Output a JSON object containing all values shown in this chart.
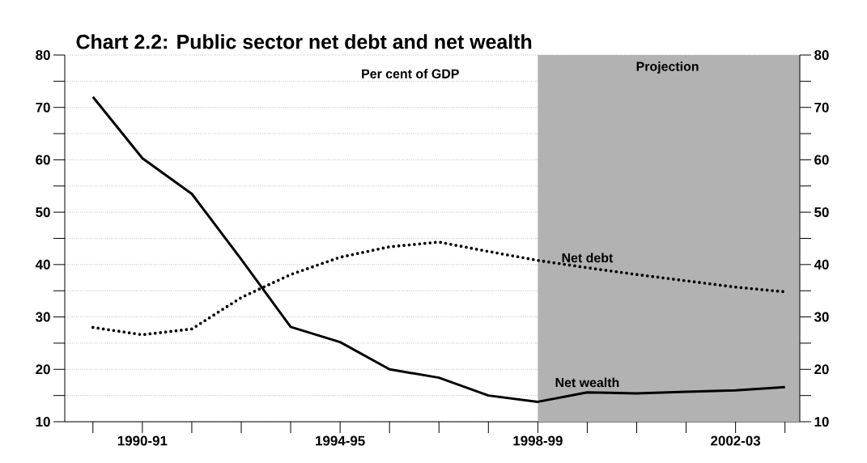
{
  "chart_data": {
    "type": "line",
    "title": "Chart 2.2: Public sector net debt and net wealth",
    "categories": [
      null,
      "1990-91",
      null,
      null,
      null,
      "1994-95",
      null,
      null,
      null,
      "1998-99",
      null,
      null,
      null,
      "2002-03",
      null
    ],
    "series": [
      {
        "name": "Net wealth",
        "color": "#000000",
        "line_style": "solid",
        "values": [
          72,
          60.3,
          53.5,
          41,
          28.1,
          25.2,
          20,
          18.4,
          15,
          13.8,
          15.6,
          15.4,
          15.7,
          16,
          16.6
        ]
      },
      {
        "name": "Net debt",
        "color": "#000000",
        "line_style": "dotted",
        "values": [
          28,
          26.6,
          27.7,
          33.7,
          38.1,
          41.4,
          43.4,
          44.3,
          42.5,
          40.8,
          39.4,
          38.1,
          36.9,
          35.7,
          34.8
        ]
      }
    ],
    "ylim": [
      10,
      80
    ],
    "yticks": [
      10,
      {
        "value": 15,
        "label": null
      },
      20,
      {
        "value": 25,
        "label": null
      },
      30,
      {
        "value": 35,
        "label": null
      },
      40,
      {
        "value": 45,
        "label": null
      },
      50,
      {
        "value": 55,
        "label": null
      },
      60,
      {
        "value": 65,
        "label": null
      },
      70,
      {
        "value": 75,
        "label": null
      },
      80
    ],
    "y2lim": [
      10,
      80
    ],
    "y2ticks": [
      10,
      {
        "value": 15,
        "label": null
      },
      20,
      {
        "value": 25,
        "label": null
      },
      30,
      {
        "value": 35,
        "label": null
      },
      40,
      {
        "value": 45,
        "label": null
      },
      50,
      {
        "value": 55,
        "label": null
      },
      60,
      {
        "value": 65,
        "label": null
      },
      70,
      {
        "value": 75,
        "label": null
      },
      80
    ],
    "annotations": [
      "Per cent of GDP",
      "Projection"
    ],
    "grid": "y",
    "marker": "none"
  }
}
